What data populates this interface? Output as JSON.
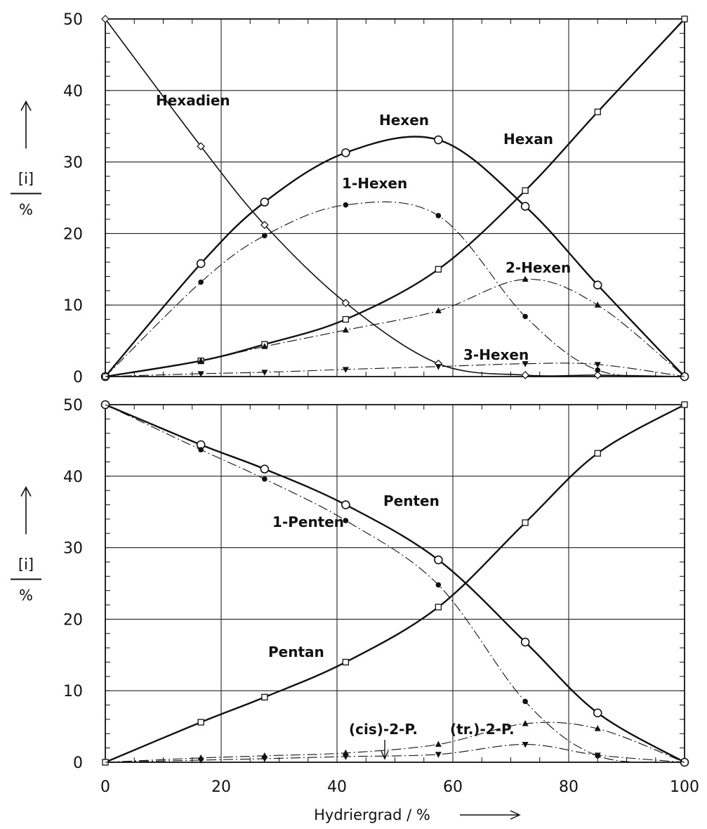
{
  "chart_data": [
    {
      "type": "line",
      "panel": "top",
      "xlim": [
        0,
        100
      ],
      "ylim": [
        0,
        50
      ],
      "xticks": [
        0,
        20,
        40,
        60,
        80,
        100
      ],
      "yticks": [
        0,
        10,
        20,
        30,
        40,
        50
      ],
      "ytick_labels": [
        "0",
        "10",
        "20",
        "30",
        "40",
        "50"
      ],
      "ylabel_top": "[i]",
      "ylabel_bottom": "%",
      "grid": true,
      "series": [
        {
          "name": "Hexadien",
          "marker": "diamond",
          "line": "solid",
          "weight": "normal",
          "points": [
            [
              0,
              50
            ],
            [
              16.5,
              32.2
            ],
            [
              27.5,
              21.2
            ],
            [
              41.5,
              10.3
            ],
            [
              57.5,
              1.8
            ],
            [
              72.5,
              0.2
            ],
            [
              85,
              0.2
            ],
            [
              100,
              0
            ]
          ]
        },
        {
          "name": "Hexen",
          "marker": "circle",
          "line": "solid",
          "weight": "bold",
          "points": [
            [
              0,
              0
            ],
            [
              16.5,
              15.8
            ],
            [
              27.5,
              24.4
            ],
            [
              41.5,
              31.3
            ],
            [
              57.5,
              33.1
            ],
            [
              72.5,
              23.8
            ],
            [
              85,
              12.8
            ],
            [
              100,
              0
            ]
          ]
        },
        {
          "name": "1-Hexen",
          "marker": "dot",
          "line": "dashdot",
          "weight": "thin",
          "points": [
            [
              0,
              0
            ],
            [
              16.5,
              13.2
            ],
            [
              27.5,
              19.7
            ],
            [
              41.5,
              24.0
            ],
            [
              57.5,
              22.5
            ],
            [
              72.5,
              8.4
            ],
            [
              85,
              0.9
            ],
            [
              100,
              0
            ]
          ]
        },
        {
          "name": "Hexan",
          "marker": "square",
          "line": "solid",
          "weight": "bold",
          "points": [
            [
              0,
              0
            ],
            [
              16.5,
              2.2
            ],
            [
              27.5,
              4.5
            ],
            [
              41.5,
              8.0
            ],
            [
              57.5,
              15.0
            ],
            [
              72.5,
              26.0
            ],
            [
              85,
              37.0
            ],
            [
              100,
              50
            ]
          ]
        },
        {
          "name": "2-Hexen",
          "marker": "triangle-up",
          "line": "dashdot",
          "weight": "thin",
          "points": [
            [
              0,
              0
            ],
            [
              16.5,
              2.2
            ],
            [
              27.5,
              4.2
            ],
            [
              41.5,
              6.5
            ],
            [
              57.5,
              9.2
            ],
            [
              72.5,
              13.6
            ],
            [
              85,
              10.0
            ],
            [
              100,
              0
            ]
          ]
        },
        {
          "name": "3-Hexen",
          "marker": "triangle-down",
          "line": "dashdot",
          "weight": "thin",
          "points": [
            [
              0,
              0
            ],
            [
              16.5,
              0.4
            ],
            [
              27.5,
              0.6
            ],
            [
              41.5,
              1.0
            ],
            [
              57.5,
              1.4
            ],
            [
              72.5,
              1.8
            ],
            [
              85,
              1.7
            ],
            [
              100,
              0
            ]
          ]
        }
      ],
      "labels": [
        {
          "text": "Hexadien",
          "series": "Hexadien"
        },
        {
          "text": "Hexen",
          "series": "Hexen"
        },
        {
          "text": "Hexan",
          "series": "Hexan"
        },
        {
          "text": "1-Hexen",
          "series": "1-Hexen"
        },
        {
          "text": "2-Hexen",
          "series": "2-Hexen"
        },
        {
          "text": "3-Hexen",
          "series": "3-Hexen"
        }
      ]
    },
    {
      "type": "line",
      "panel": "bottom",
      "xlim": [
        0,
        100
      ],
      "ylim": [
        0,
        50
      ],
      "xticks": [
        0,
        20,
        40,
        60,
        80,
        100
      ],
      "yticks": [
        0,
        10,
        20,
        30,
        40,
        50
      ],
      "xtick_labels": [
        "0",
        "20",
        "40",
        "60",
        "80",
        "100"
      ],
      "ytick_labels": [
        "0",
        "10",
        "20",
        "30",
        "40",
        "50"
      ],
      "ylabel_top": "[i]",
      "ylabel_bottom": "%",
      "xlabel": "Hydriergrad / %",
      "grid": true,
      "series": [
        {
          "name": "Penten",
          "marker": "circle",
          "line": "solid",
          "weight": "bold",
          "points": [
            [
              0,
              50
            ],
            [
              16.5,
              44.4
            ],
            [
              27.5,
              41.0
            ],
            [
              41.5,
              36.0
            ],
            [
              57.5,
              28.3
            ],
            [
              72.5,
              16.8
            ],
            [
              85,
              6.9
            ],
            [
              100,
              0
            ]
          ]
        },
        {
          "name": "1-Penten",
          "marker": "dot",
          "line": "dashdot",
          "weight": "thin",
          "points": [
            [
              0,
              50
            ],
            [
              16.5,
              43.7
            ],
            [
              27.5,
              39.6
            ],
            [
              41.5,
              33.8
            ],
            [
              57.5,
              24.8
            ],
            [
              72.5,
              8.5
            ],
            [
              85,
              0.9
            ],
            [
              100,
              0
            ]
          ]
        },
        {
          "name": "Pentan",
          "marker": "square",
          "line": "solid",
          "weight": "bold",
          "points": [
            [
              0,
              0
            ],
            [
              16.5,
              5.6
            ],
            [
              27.5,
              9.1
            ],
            [
              41.5,
              14.0
            ],
            [
              57.5,
              21.7
            ],
            [
              72.5,
              33.5
            ],
            [
              85,
              43.2
            ],
            [
              100,
              50
            ]
          ]
        },
        {
          "name": "(tr.)-2-P.",
          "marker": "triangle-up",
          "line": "dashdot",
          "weight": "thin",
          "points": [
            [
              0,
              0
            ],
            [
              16.5,
              0.6
            ],
            [
              27.5,
              0.9
            ],
            [
              41.5,
              1.3
            ],
            [
              57.5,
              2.5
            ],
            [
              72.5,
              5.4
            ],
            [
              85,
              4.7
            ],
            [
              100,
              0
            ]
          ]
        },
        {
          "name": "(cis)-2-P.",
          "marker": "triangle-down",
          "line": "dashdot",
          "weight": "thin",
          "points": [
            [
              0,
              0
            ],
            [
              16.5,
              0.3
            ],
            [
              27.5,
              0.5
            ],
            [
              41.5,
              0.8
            ],
            [
              57.5,
              1.1
            ],
            [
              72.5,
              2.5
            ],
            [
              85,
              1.0
            ],
            [
              100,
              0
            ]
          ]
        }
      ],
      "labels": [
        {
          "text": "Penten",
          "series": "Penten"
        },
        {
          "text": "1-Penten",
          "series": "1-Penten"
        },
        {
          "text": "Pentan",
          "series": "Pentan"
        },
        {
          "text": "(cis)-2-P.",
          "series": "(cis)-2-P."
        },
        {
          "text": "(tr.)-2-P.",
          "series": "(tr.)-2-P."
        }
      ]
    }
  ]
}
